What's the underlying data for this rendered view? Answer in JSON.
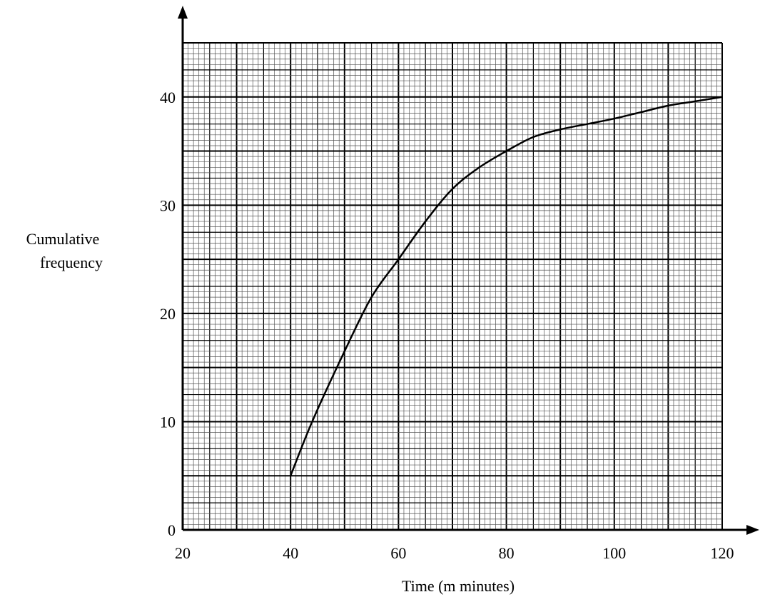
{
  "chart_data": {
    "type": "line",
    "title": "",
    "xlabel": "Time (m minutes)",
    "ylabel_lines": [
      "Cumulative",
      "frequency"
    ],
    "xlim": [
      20,
      120
    ],
    "ylim": [
      0,
      45
    ],
    "x_ticks": [
      "20",
      "40",
      "60",
      "80",
      "100",
      "120"
    ],
    "x_tick_values": [
      20,
      40,
      60,
      80,
      100,
      120
    ],
    "y_ticks": [
      "0",
      "10",
      "20",
      "30",
      "40"
    ],
    "y_tick_values": [
      0,
      10,
      20,
      30,
      40
    ],
    "grid": true,
    "series": [
      {
        "x": [
          40,
          44,
          50,
          55,
          60,
          65,
          70,
          75,
          80,
          85,
          90,
          95,
          100,
          105,
          110,
          115,
          120
        ],
        "y": [
          5,
          10,
          16.5,
          21.5,
          25,
          28.5,
          31.5,
          33.5,
          35,
          36.3,
          37,
          37.5,
          38,
          38.6,
          39.2,
          39.6,
          40
        ]
      }
    ]
  }
}
